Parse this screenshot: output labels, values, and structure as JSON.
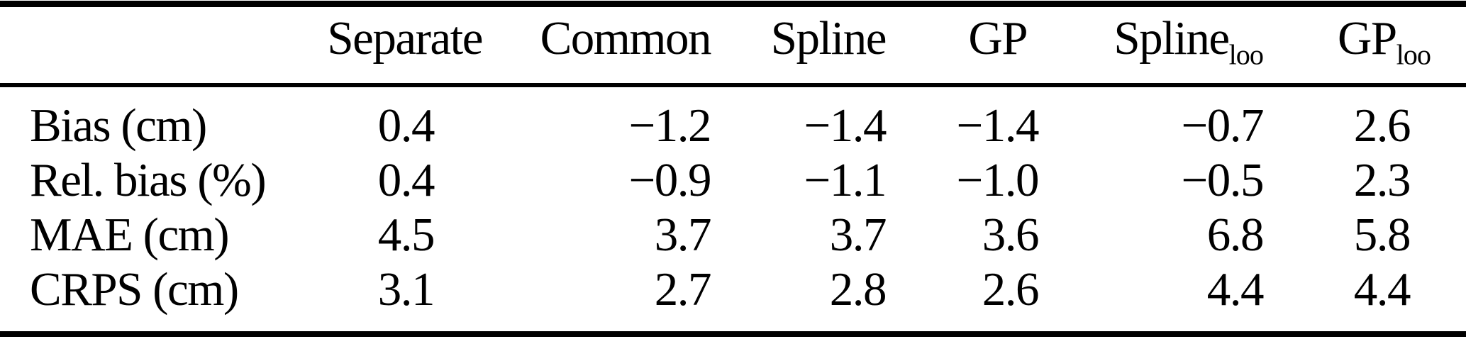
{
  "colors": {
    "background": "#ffffff",
    "text": "#000000",
    "rule": "#000000"
  },
  "chart_data": {
    "type": "table",
    "columns": [
      {
        "base": "",
        "sub": ""
      },
      {
        "base": "Separate",
        "sub": ""
      },
      {
        "base": "Common",
        "sub": ""
      },
      {
        "base": "Spline",
        "sub": ""
      },
      {
        "base": "GP",
        "sub": ""
      },
      {
        "base": "Spline",
        "sub": "loo"
      },
      {
        "base": "GP",
        "sub": "loo"
      }
    ],
    "rows": [
      {
        "label": "Bias (cm)",
        "values": [
          "0.4",
          "−1.2",
          "−1.4",
          "−1.4",
          "−0.7",
          "2.6"
        ]
      },
      {
        "label": "Rel. bias (%)",
        "values": [
          "0.4",
          "−0.9",
          "−1.1",
          "−1.0",
          "−0.5",
          "2.3"
        ]
      },
      {
        "label": "MAE (cm)",
        "values": [
          "4.5",
          "3.7",
          "3.7",
          "3.6",
          "6.8",
          "5.8"
        ]
      },
      {
        "label": "CRPS (cm)",
        "values": [
          "3.1",
          "2.7",
          "2.8",
          "2.6",
          "4.4",
          "4.4"
        ]
      }
    ]
  }
}
